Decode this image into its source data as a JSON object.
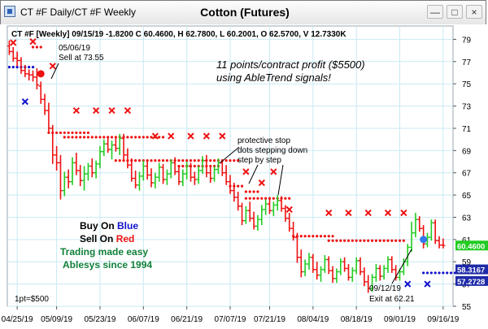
{
  "window": {
    "title": "CT #F Daily/CT #F Weekly",
    "chart_title": "Cotton (Futures)",
    "min_glyph": "—",
    "max_glyph": "□",
    "close_glyph": "×"
  },
  "info_line": "CT #F [Weekly] 09/15/19  -1.8200 C 60.4600, H 62.7800, L 60.2001, O 62.5700, V 12.7330K",
  "annotations": {
    "sell_date": "05/06/19",
    "sell_text": "Sell at 73.55",
    "profit_line1": "11 points/contract profit ($5500)",
    "profit_line2": "using AbleTrend signals!",
    "stop_line1": "protective stop",
    "stop_line2": "dots stepping down",
    "stop_line3": "step by step",
    "buy_prefix": "Buy On ",
    "buy_word": "Blue",
    "sell_prefix": "Sell On ",
    "sell_word": "Red",
    "promo1": "Trading made easy",
    "promo2": "Ablesys since 1994",
    "exit_date": "09/12/19",
    "exit_text": "Exit at 62.21",
    "point_value": "1pt=$500"
  },
  "price_tags": {
    "last": "60.4600",
    "blue1": "58.3167",
    "blue2": "57.2728"
  },
  "colors": {
    "up": "#22cc22",
    "down": "#ee1111",
    "stop_red": "#ee1111",
    "stop_blue": "#1111cc",
    "grid": "#c9eaf3",
    "last_tag": "#22cc22",
    "blue_tag": "#1e2aa8"
  },
  "chart_data": {
    "type": "candlestick",
    "title": "Cotton (Futures)",
    "y_ticks": [
      55,
      57,
      59,
      61,
      63,
      65,
      67,
      69,
      71,
      73,
      75,
      77,
      79
    ],
    "ylim": [
      55,
      80.2
    ],
    "x_tick_labels": [
      "04/25/19",
      "05/09/19",
      "05/23/19",
      "06/07/19",
      "06/21/19",
      "07/07/19",
      "07/21/19",
      "08/04/19",
      "08/18/19",
      "09/01/19",
      "09/16/19"
    ],
    "sessions": 113,
    "x_tick_positions": [
      2,
      12,
      23,
      34,
      45,
      56,
      66,
      77,
      88,
      99,
      110
    ],
    "bars": [
      {
        "o": 78.4,
        "h": 78.9,
        "l": 77.6,
        "c": 77.9
      },
      {
        "o": 77.9,
        "h": 78.3,
        "l": 77.0,
        "c": 77.3
      },
      {
        "o": 77.3,
        "h": 77.9,
        "l": 76.6,
        "c": 77.1
      },
      {
        "o": 77.1,
        "h": 77.4,
        "l": 75.9,
        "c": 76.2
      },
      {
        "o": 76.2,
        "h": 76.7,
        "l": 75.6,
        "c": 75.9
      },
      {
        "o": 75.9,
        "h": 76.3,
        "l": 75.3,
        "c": 75.8
      },
      {
        "o": 75.8,
        "h": 76.2,
        "l": 75.2,
        "c": 75.6
      },
      {
        "o": 75.6,
        "h": 76.4,
        "l": 74.5,
        "c": 74.9
      },
      {
        "o": 74.8,
        "h": 75.2,
        "l": 73.2,
        "c": 73.6
      },
      {
        "o": 73.6,
        "h": 74.1,
        "l": 72.2,
        "c": 72.6
      },
      {
        "o": 72.6,
        "h": 73.3,
        "l": 70.6,
        "c": 71.0
      },
      {
        "o": 71.0,
        "h": 71.3,
        "l": 67.8,
        "c": 68.6
      },
      {
        "o": 68.6,
        "h": 69.4,
        "l": 67.2,
        "c": 67.9
      },
      {
        "o": 67.9,
        "h": 68.6,
        "l": 64.6,
        "c": 65.4
      },
      {
        "o": 65.4,
        "h": 67.1,
        "l": 64.9,
        "c": 66.6
      },
      {
        "o": 66.6,
        "h": 67.3,
        "l": 65.6,
        "c": 66.2
      },
      {
        "o": 66.2,
        "h": 68.4,
        "l": 65.9,
        "c": 67.9
      },
      {
        "o": 67.9,
        "h": 68.8,
        "l": 66.8,
        "c": 67.2
      },
      {
        "o": 67.2,
        "h": 67.7,
        "l": 65.8,
        "c": 66.3
      },
      {
        "o": 66.3,
        "h": 67.6,
        "l": 65.4,
        "c": 66.9
      },
      {
        "o": 66.9,
        "h": 67.9,
        "l": 66.3,
        "c": 67.6
      },
      {
        "o": 67.6,
        "h": 68.3,
        "l": 66.6,
        "c": 67.0
      },
      {
        "o": 67.0,
        "h": 68.1,
        "l": 66.5,
        "c": 67.8
      },
      {
        "o": 67.8,
        "h": 69.4,
        "l": 67.4,
        "c": 68.9
      },
      {
        "o": 68.9,
        "h": 70.0,
        "l": 68.5,
        "c": 69.6
      },
      {
        "o": 69.6,
        "h": 70.2,
        "l": 68.8,
        "c": 69.1
      },
      {
        "o": 69.1,
        "h": 69.9,
        "l": 68.2,
        "c": 69.5
      },
      {
        "o": 69.5,
        "h": 70.3,
        "l": 68.9,
        "c": 69.2
      },
      {
        "o": 69.2,
        "h": 70.5,
        "l": 68.6,
        "c": 70.1
      },
      {
        "o": 70.1,
        "h": 70.5,
        "l": 68.2,
        "c": 68.6
      },
      {
        "o": 68.6,
        "h": 69.2,
        "l": 67.4,
        "c": 67.7
      },
      {
        "o": 67.7,
        "h": 68.3,
        "l": 66.2,
        "c": 66.5
      },
      {
        "o": 66.5,
        "h": 67.2,
        "l": 65.6,
        "c": 65.9
      },
      {
        "o": 65.9,
        "h": 67.1,
        "l": 65.4,
        "c": 66.7
      },
      {
        "o": 66.7,
        "h": 68.1,
        "l": 66.3,
        "c": 67.6
      },
      {
        "o": 67.6,
        "h": 68.0,
        "l": 66.4,
        "c": 66.8
      },
      {
        "o": 66.8,
        "h": 67.4,
        "l": 65.7,
        "c": 66.1
      },
      {
        "o": 66.1,
        "h": 67.0,
        "l": 65.6,
        "c": 66.6
      },
      {
        "o": 66.6,
        "h": 67.9,
        "l": 66.2,
        "c": 67.5
      },
      {
        "o": 67.5,
        "h": 67.8,
        "l": 66.0,
        "c": 66.4
      },
      {
        "o": 66.4,
        "h": 67.3,
        "l": 65.9,
        "c": 66.9
      },
      {
        "o": 66.9,
        "h": 68.2,
        "l": 66.5,
        "c": 67.9
      },
      {
        "o": 67.9,
        "h": 68.4,
        "l": 66.8,
        "c": 67.1
      },
      {
        "o": 67.1,
        "h": 67.5,
        "l": 65.9,
        "c": 66.2
      },
      {
        "o": 66.2,
        "h": 67.3,
        "l": 65.8,
        "c": 66.9
      },
      {
        "o": 66.9,
        "h": 68.0,
        "l": 66.4,
        "c": 67.6
      },
      {
        "o": 67.6,
        "h": 67.9,
        "l": 66.2,
        "c": 66.6
      },
      {
        "o": 66.6,
        "h": 67.1,
        "l": 65.9,
        "c": 66.4
      },
      {
        "o": 66.4,
        "h": 67.6,
        "l": 66.0,
        "c": 67.2
      },
      {
        "o": 67.2,
        "h": 68.5,
        "l": 66.9,
        "c": 68.1
      },
      {
        "o": 68.1,
        "h": 68.6,
        "l": 66.6,
        "c": 67.0
      },
      {
        "o": 67.0,
        "h": 67.6,
        "l": 66.1,
        "c": 66.5
      },
      {
        "o": 66.5,
        "h": 67.6,
        "l": 66.2,
        "c": 67.3
      },
      {
        "o": 67.3,
        "h": 68.3,
        "l": 66.9,
        "c": 67.9
      },
      {
        "o": 67.9,
        "h": 68.2,
        "l": 66.7,
        "c": 67.0
      },
      {
        "o": 67.0,
        "h": 67.7,
        "l": 65.9,
        "c": 66.2
      },
      {
        "o": 66.2,
        "h": 66.8,
        "l": 65.1,
        "c": 65.4
      },
      {
        "o": 65.4,
        "h": 66.1,
        "l": 64.4,
        "c": 64.8
      },
      {
        "o": 64.8,
        "h": 65.3,
        "l": 63.6,
        "c": 64.0
      },
      {
        "o": 64.0,
        "h": 64.3,
        "l": 62.3,
        "c": 62.7
      },
      {
        "o": 62.7,
        "h": 64.0,
        "l": 62.4,
        "c": 63.6
      },
      {
        "o": 63.6,
        "h": 64.4,
        "l": 62.6,
        "c": 62.9
      },
      {
        "o": 62.9,
        "h": 63.5,
        "l": 61.9,
        "c": 62.2
      },
      {
        "o": 62.2,
        "h": 63.2,
        "l": 61.8,
        "c": 62.8
      },
      {
        "o": 62.8,
        "h": 64.1,
        "l": 62.3,
        "c": 63.7
      },
      {
        "o": 63.7,
        "h": 64.6,
        "l": 63.2,
        "c": 64.2
      },
      {
        "o": 64.2,
        "h": 64.8,
        "l": 63.3,
        "c": 63.6
      },
      {
        "o": 63.6,
        "h": 64.4,
        "l": 63.1,
        "c": 64.1
      },
      {
        "o": 64.1,
        "h": 65.0,
        "l": 63.6,
        "c": 64.5
      },
      {
        "o": 64.5,
        "h": 64.9,
        "l": 63.5,
        "c": 63.8
      },
      {
        "o": 63.8,
        "h": 64.1,
        "l": 62.6,
        "c": 62.9
      },
      {
        "o": 62.9,
        "h": 63.4,
        "l": 61.7,
        "c": 62.0
      },
      {
        "o": 62.0,
        "h": 62.6,
        "l": 60.9,
        "c": 61.2
      },
      {
        "o": 61.2,
        "h": 61.6,
        "l": 58.9,
        "c": 59.4
      },
      {
        "o": 59.4,
        "h": 60.1,
        "l": 57.6,
        "c": 58.1
      },
      {
        "o": 58.1,
        "h": 59.2,
        "l": 57.7,
        "c": 58.8
      },
      {
        "o": 58.8,
        "h": 59.8,
        "l": 58.3,
        "c": 59.4
      },
      {
        "o": 59.4,
        "h": 59.7,
        "l": 58.0,
        "c": 58.3
      },
      {
        "o": 58.3,
        "h": 59.0,
        "l": 57.4,
        "c": 57.8
      },
      {
        "o": 57.8,
        "h": 58.6,
        "l": 57.2,
        "c": 58.3
      },
      {
        "o": 58.3,
        "h": 59.6,
        "l": 58.0,
        "c": 59.2
      },
      {
        "o": 59.2,
        "h": 59.5,
        "l": 57.9,
        "c": 58.2
      },
      {
        "o": 58.2,
        "h": 58.6,
        "l": 57.1,
        "c": 57.5
      },
      {
        "o": 57.5,
        "h": 58.4,
        "l": 57.1,
        "c": 58.1
      },
      {
        "o": 58.1,
        "h": 59.3,
        "l": 57.8,
        "c": 59.0
      },
      {
        "o": 59.0,
        "h": 59.4,
        "l": 58.1,
        "c": 58.4
      },
      {
        "o": 58.4,
        "h": 58.8,
        "l": 57.3,
        "c": 57.6
      },
      {
        "o": 57.6,
        "h": 58.5,
        "l": 57.2,
        "c": 58.2
      },
      {
        "o": 58.2,
        "h": 59.4,
        "l": 57.9,
        "c": 59.1
      },
      {
        "o": 59.1,
        "h": 59.4,
        "l": 57.8,
        "c": 58.1
      },
      {
        "o": 58.1,
        "h": 58.5,
        "l": 56.8,
        "c": 57.2
      },
      {
        "o": 57.2,
        "h": 57.8,
        "l": 56.2,
        "c": 56.6
      },
      {
        "o": 56.6,
        "h": 57.9,
        "l": 56.3,
        "c": 57.6
      },
      {
        "o": 57.6,
        "h": 58.8,
        "l": 57.2,
        "c": 58.4
      },
      {
        "o": 58.4,
        "h": 58.7,
        "l": 57.3,
        "c": 57.7
      },
      {
        "o": 57.7,
        "h": 58.7,
        "l": 57.4,
        "c": 58.4
      },
      {
        "o": 58.4,
        "h": 59.5,
        "l": 58.0,
        "c": 59.2
      },
      {
        "o": 59.2,
        "h": 59.5,
        "l": 58.0,
        "c": 58.3
      },
      {
        "o": 58.3,
        "h": 58.7,
        "l": 57.3,
        "c": 57.6
      },
      {
        "o": 57.6,
        "h": 58.4,
        "l": 57.3,
        "c": 58.1
      },
      {
        "o": 58.1,
        "h": 59.3,
        "l": 57.8,
        "c": 59.0
      },
      {
        "o": 59.0,
        "h": 60.6,
        "l": 58.6,
        "c": 60.3
      },
      {
        "o": 60.3,
        "h": 62.6,
        "l": 59.9,
        "c": 61.6
      },
      {
        "o": 61.6,
        "h": 63.4,
        "l": 61.2,
        "c": 62.8
      },
      {
        "o": 62.8,
        "h": 63.1,
        "l": 61.7,
        "c": 62.0
      },
      {
        "o": 62.0,
        "h": 62.3,
        "l": 60.2,
        "c": 60.6
      },
      {
        "o": 60.6,
        "h": 61.6,
        "l": 60.3,
        "c": 61.2
      },
      {
        "o": 61.2,
        "h": 62.8,
        "l": 60.9,
        "c": 62.5
      },
      {
        "o": 62.5,
        "h": 62.8,
        "l": 60.6,
        "c": 60.9
      },
      {
        "o": 60.9,
        "h": 61.3,
        "l": 60.2,
        "c": 60.5
      },
      {
        "o": 60.5,
        "h": 61.1,
        "l": 60.2,
        "c": 60.46
      }
    ],
    "red_stop_segments": [
      {
        "from": 6,
        "to": 8,
        "y": 78.3
      },
      {
        "from": 10,
        "to": 20,
        "y": 70.6
      },
      {
        "from": 14,
        "to": 39,
        "y": 70.2
      },
      {
        "from": 27,
        "to": 58,
        "y": 68.1
      },
      {
        "from": 43,
        "to": 53,
        "y": 67.6
      },
      {
        "from": 56,
        "to": 59,
        "y": 65.8
      },
      {
        "from": 60,
        "to": 63,
        "y": 65.3
      },
      {
        "from": 60,
        "to": 71,
        "y": 64.7
      },
      {
        "from": 72,
        "to": 82,
        "y": 61.3
      },
      {
        "from": 81,
        "to": 100,
        "y": 60.9
      }
    ],
    "red_x_markers": [
      {
        "i": 1,
        "y": 78.7
      },
      {
        "i": 6,
        "y": 78.8
      },
      {
        "i": 11,
        "y": 76.6
      },
      {
        "i": 17,
        "y": 72.6
      },
      {
        "i": 22,
        "y": 72.6
      },
      {
        "i": 26,
        "y": 72.6
      },
      {
        "i": 30,
        "y": 72.6
      },
      {
        "i": 37,
        "y": 70.3
      },
      {
        "i": 41,
        "y": 70.3
      },
      {
        "i": 46,
        "y": 70.3
      },
      {
        "i": 50,
        "y": 70.3
      },
      {
        "i": 54,
        "y": 70.3
      },
      {
        "i": 60,
        "y": 67.1
      },
      {
        "i": 64,
        "y": 66.1
      },
      {
        "i": 67,
        "y": 67.1
      },
      {
        "i": 71,
        "y": 63.7
      },
      {
        "i": 81,
        "y": 63.4
      },
      {
        "i": 86,
        "y": 63.4
      },
      {
        "i": 91,
        "y": 63.4
      },
      {
        "i": 96,
        "y": 63.4
      },
      {
        "i": 100,
        "y": 63.4
      }
    ],
    "blue_x_markers": [
      {
        "i": 4,
        "y": 73.4
      },
      {
        "i": 101,
        "y": 57.0
      },
      {
        "i": 106,
        "y": 57.0
      }
    ],
    "blue_stop_segments": [
      {
        "from": 0,
        "to": 6,
        "y": 76.5
      },
      {
        "from": 105,
        "to": 113,
        "y": 58.0
      }
    ],
    "sell_signal": {
      "i": 8,
      "y": 75.9
    },
    "exit_signal": {
      "i": 105,
      "y": 61.0
    },
    "last_price": 60.46,
    "blue_tag_1": 58.3167,
    "blue_tag_2": 57.2728
  }
}
